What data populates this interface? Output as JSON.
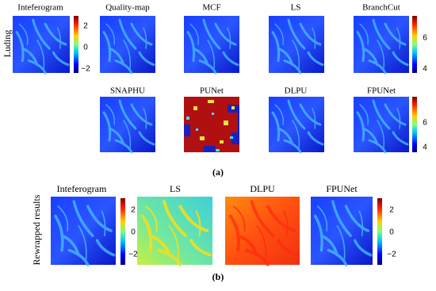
{
  "panel_a": {
    "row_label": "Luding",
    "titles": [
      "Inteferogram",
      "Quality-map",
      "MCF",
      "LS",
      "BranchCut",
      "SNAPHU",
      "PUNet",
      "DLPU",
      "FPUNet"
    ],
    "colorbar_wrapped_ticks": [
      "2",
      "0",
      "−2"
    ],
    "colorbar_row1_ticks": [
      "6",
      "4"
    ],
    "colorbar_row2_ticks": [
      "6",
      "4"
    ],
    "label": "(a)"
  },
  "panel_b": {
    "row_label": "Rewrapped results",
    "titles": [
      "Inteferogram",
      "LS",
      "DLPU",
      "FPUNet"
    ],
    "colorbar_left_ticks": [
      "2",
      "0",
      "−2"
    ],
    "colorbar_right_ticks": [
      "2",
      "0",
      "−2"
    ],
    "label": "(b)"
  }
}
